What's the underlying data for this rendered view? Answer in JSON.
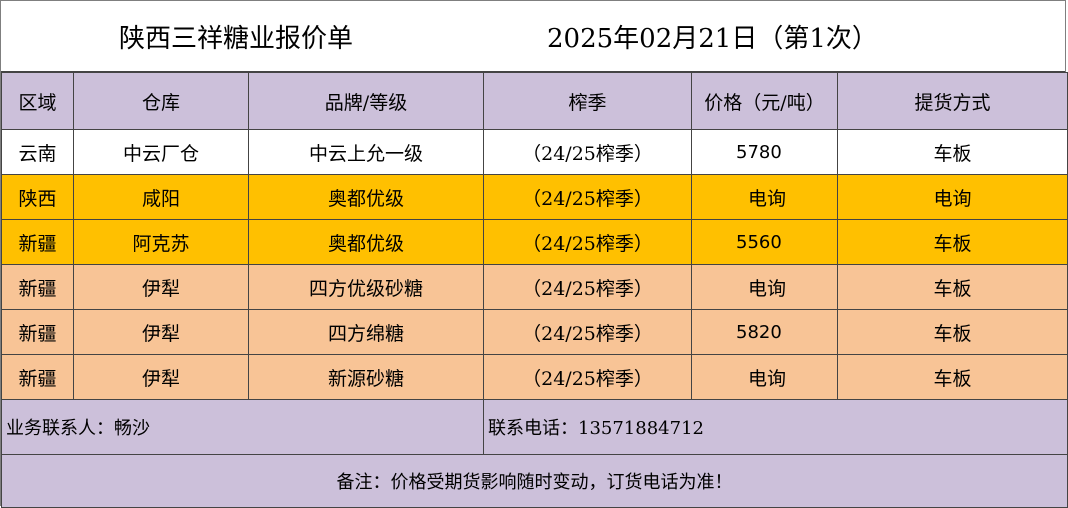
{
  "title": "陕西三祥糖业报价单",
  "date": "2025年02月21日（第1次）",
  "headers": [
    "区域",
    "仓库",
    "品牌/等级",
    "榨季",
    "价格（元/吨）",
    "提货方式"
  ],
  "rows": [
    {
      "region": "云南",
      "warehouse": "中云厂仓",
      "brand": "中云上允一级",
      "season": "（24/25榨季）",
      "price": "5780",
      "delivery": "车板",
      "style": "white"
    },
    {
      "region": "陕西",
      "warehouse": "咸阳",
      "brand": "奥都优级",
      "season": "（24/25榨季）",
      "price": "电询",
      "delivery": "电询",
      "style": "gold"
    },
    {
      "region": "新疆",
      "warehouse": "阿克苏",
      "brand": "奥都优级",
      "season": "（24/25榨季）",
      "price": "5560",
      "delivery": "车板",
      "style": "gold"
    },
    {
      "region": "新疆",
      "warehouse": "伊犁",
      "brand": "四方优级砂糖",
      "season": "（24/25榨季）",
      "price": "电询",
      "delivery": "车板",
      "style": "peach"
    },
    {
      "region": "新疆",
      "warehouse": "伊犁",
      "brand": "四方绵糖",
      "season": "（24/25榨季）",
      "price": "5820",
      "delivery": "车板",
      "style": "peach"
    },
    {
      "region": "新疆",
      "warehouse": "伊犁",
      "brand": "新源砂糖",
      "season": "（24/25榨季）",
      "price": "电询",
      "delivery": "车板",
      "style": "peach"
    }
  ],
  "contact": {
    "person": "业务联系人：畅沙",
    "phone": "联系电话：13571884712"
  },
  "note": "备注：价格受期货影响随时变动，订货电话为准！",
  "colors": {
    "header": "#ccc0da",
    "gold": "#ffc000",
    "peach": "#f8c496",
    "white": "#ffffff"
  }
}
